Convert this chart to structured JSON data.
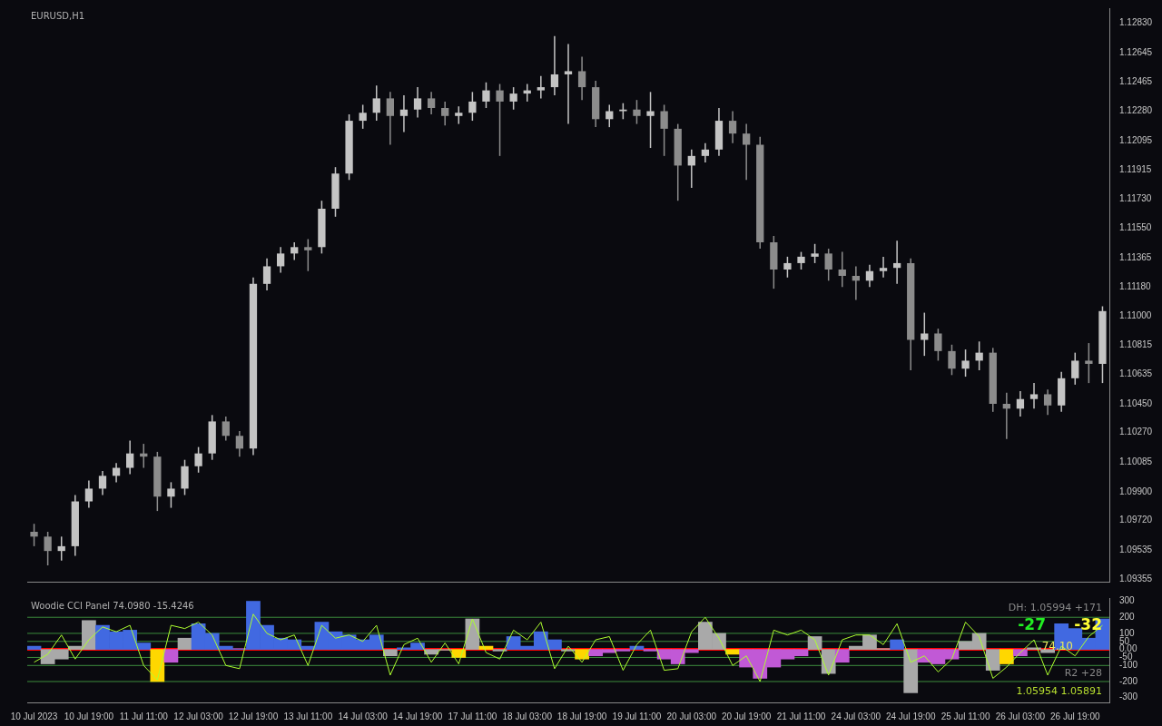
{
  "chart_data": [
    {
      "type": "candlestick",
      "title": "EURUSD,H1",
      "colors": [
        "#8c8c8c",
        "#8c8c8c",
        "#c4c4c4",
        "#c4c4c4",
        "#c4c4c4",
        "#c4c4c4",
        "#c4c4c4",
        "#c4c4c4",
        "#8c8c8c",
        "#8c8c8c",
        "#c4c4c4",
        "#c4c4c4",
        "#c4c4c4",
        "#c4c4c4",
        "#8c8c8c",
        "#8c8c8c",
        "#c4c4c4",
        "#c4c4c4",
        "#c4c4c4",
        "#c4c4c4",
        "#8c8c8c",
        "#c4c4c4",
        "#c4c4c4",
        "#c4c4c4",
        "#c4c4c4",
        "#c4c4c4",
        "#8c8c8c",
        "#c4c4c4",
        "#c4c4c4",
        "#8c8c8c",
        "#8c8c8c",
        "#c4c4c4",
        "#c4c4c4",
        "#c4c4c4",
        "#8c8c8c",
        "#c4c4c4",
        "#c4c4c4",
        "#c4c4c4",
        "#c4c4c4",
        "#c4c4c4",
        "#8c8c8c",
        "#8c8c8c",
        "#c4c4c4",
        "#c4c4c4",
        "#8c8c8c",
        "#c4c4c4",
        "#8c8c8c",
        "#8c8c8c",
        "#c4c4c4",
        "#c4c4c4",
        "#c4c4c4",
        "#8c8c8c",
        "#8c8c8c",
        "#8c8c8c",
        "#8c8c8c",
        "#c4c4c4",
        "#c4c4c4",
        "#c4c4c4",
        "#8c8c8c",
        "#8c8c8c",
        "#8c8c8c",
        "#c4c4c4",
        "#c4c4c4",
        "#c4c4c4",
        "#8c8c8c",
        "#c4c4c4",
        "#8c8c8c",
        "#8c8c8c",
        "#c4c4c4",
        "#c4c4c4",
        "#8c8c8c",
        "#8c8c8c",
        "#c4c4c4",
        "#c4c4c4",
        "#8c8c8c",
        "#c4c4c4",
        "#c4c4c4",
        "#8c8c8c",
        "#c4c4c4"
      ],
      "tick_labels": "y",
      "legend": false,
      "grid": false,
      "categories": [
        null,
        null,
        null,
        null,
        null,
        null,
        null,
        null,
        null,
        null,
        null,
        null,
        null,
        null,
        null,
        null,
        null,
        null,
        null,
        null,
        null,
        null,
        null,
        null,
        null,
        null,
        null,
        null,
        null,
        null,
        null,
        null,
        null,
        null,
        null,
        null,
        null,
        null,
        null,
        null,
        null,
        null,
        null,
        null,
        null,
        null,
        null,
        null,
        null,
        null,
        null,
        null,
        null,
        null,
        null,
        null,
        null,
        null,
        null,
        null,
        null,
        null,
        null,
        null,
        null,
        null,
        null,
        null,
        null,
        null,
        null,
        null,
        null,
        null,
        null,
        null,
        null,
        null,
        null
      ],
      "ylim": [
        1.09338,
        1.12924
      ],
      "yticks": [
        {
          "value": 1.1283,
          "label": "1.12830"
        },
        {
          "value": 1.12645,
          "label": "1.12645"
        },
        {
          "value": 1.12465,
          "label": "1.12465"
        },
        {
          "value": 1.1228,
          "label": "1.12280"
        },
        {
          "value": 1.12095,
          "label": "1.12095"
        },
        {
          "value": 1.11915,
          "label": "1.11915"
        },
        {
          "value": 1.1173,
          "label": "1.11730"
        },
        {
          "value": 1.1155,
          "label": "1.11550"
        },
        {
          "value": 1.11365,
          "label": "1.11365"
        },
        {
          "value": 1.1118,
          "label": "1.11180"
        },
        {
          "value": 1.11,
          "label": "1.11000"
        },
        {
          "value": 1.10815,
          "label": "1.10815"
        },
        {
          "value": 1.10635,
          "label": "1.10635"
        },
        {
          "value": 1.1045,
          "label": "1.10450"
        },
        {
          "value": 1.1027,
          "label": "1.10270"
        },
        {
          "value": 1.10085,
          "label": "1.10085"
        },
        {
          "value": 1.099,
          "label": "1.09900"
        },
        {
          "value": 1.0972,
          "label": "1.09720"
        },
        {
          "value": 1.09535,
          "label": "1.09535"
        },
        {
          "value": 1.09355,
          "label": "1.09355"
        }
      ],
      "ohlc": [
        [
          1.0965,
          1.097,
          1.0956,
          1.0962
        ],
        [
          1.0962,
          1.0965,
          1.0944,
          1.0953
        ],
        [
          1.0953,
          1.0962,
          1.0947,
          1.0956
        ],
        [
          1.0956,
          1.0988,
          1.095,
          1.0984
        ],
        [
          1.0984,
          1.0997,
          1.098,
          1.0992
        ],
        [
          1.0992,
          1.1003,
          1.0988,
          1.1
        ],
        [
          1.1,
          1.1008,
          1.0996,
          1.1005
        ],
        [
          1.1005,
          1.1022,
          1.1001,
          1.1014
        ],
        [
          1.1014,
          1.102,
          1.1005,
          1.1012
        ],
        [
          1.1012,
          1.1015,
          1.0978,
          1.0987
        ],
        [
          1.0987,
          1.0996,
          1.098,
          1.0992
        ],
        [
          1.0992,
          1.101,
          1.0988,
          1.1006
        ],
        [
          1.1006,
          1.1018,
          1.1002,
          1.1014
        ],
        [
          1.1014,
          1.1038,
          1.101,
          1.1034
        ],
        [
          1.1034,
          1.1037,
          1.1022,
          1.1025
        ],
        [
          1.1025,
          1.1028,
          1.1012,
          1.1017
        ],
        [
          1.1017,
          1.1124,
          1.1013,
          1.112
        ],
        [
          1.112,
          1.1136,
          1.1116,
          1.1131
        ],
        [
          1.1131,
          1.1143,
          1.1127,
          1.1139
        ],
        [
          1.1139,
          1.1146,
          1.1135,
          1.1143
        ],
        [
          1.1143,
          1.1148,
          1.1128,
          1.1141
        ],
        [
          1.1143,
          1.1172,
          1.1139,
          1.1167
        ],
        [
          1.1167,
          1.1193,
          1.1162,
          1.1189
        ],
        [
          1.1189,
          1.1226,
          1.1185,
          1.1222
        ],
        [
          1.1222,
          1.1232,
          1.1217,
          1.1227
        ],
        [
          1.1227,
          1.1244,
          1.1222,
          1.1236
        ],
        [
          1.1236,
          1.124,
          1.1207,
          1.1225
        ],
        [
          1.1225,
          1.1238,
          1.1215,
          1.1229
        ],
        [
          1.1229,
          1.1243,
          1.1224,
          1.1236
        ],
        [
          1.1236,
          1.124,
          1.1226,
          1.123
        ],
        [
          1.123,
          1.1234,
          1.1219,
          1.1225
        ],
        [
          1.1225,
          1.1231,
          1.122,
          1.1227
        ],
        [
          1.1227,
          1.124,
          1.1222,
          1.1234
        ],
        [
          1.1234,
          1.1246,
          1.123,
          1.1241
        ],
        [
          1.1241,
          1.1245,
          1.12,
          1.1234
        ],
        [
          1.1234,
          1.1243,
          1.1229,
          1.1239
        ],
        [
          1.1239,
          1.1245,
          1.1234,
          1.1241
        ],
        [
          1.1241,
          1.125,
          1.1236,
          1.1243
        ],
        [
          1.1243,
          1.1275,
          1.1238,
          1.1251
        ],
        [
          1.1251,
          1.127,
          1.122,
          1.1253
        ],
        [
          1.1253,
          1.1262,
          1.1235,
          1.1243
        ],
        [
          1.1243,
          1.1247,
          1.1218,
          1.1223
        ],
        [
          1.1223,
          1.1232,
          1.1218,
          1.1228
        ],
        [
          1.1228,
          1.1233,
          1.1223,
          1.1229
        ],
        [
          1.1229,
          1.1235,
          1.122,
          1.1225
        ],
        [
          1.1225,
          1.124,
          1.1205,
          1.1228
        ],
        [
          1.1228,
          1.1232,
          1.12,
          1.1217
        ],
        [
          1.1217,
          1.122,
          1.1172,
          1.1194
        ],
        [
          1.1194,
          1.1204,
          1.118,
          1.12
        ],
        [
          1.12,
          1.1208,
          1.1196,
          1.1204
        ],
        [
          1.1204,
          1.123,
          1.12,
          1.1222
        ],
        [
          1.1222,
          1.1228,
          1.1208,
          1.1214
        ],
        [
          1.1214,
          1.122,
          1.1185,
          1.1207
        ],
        [
          1.1207,
          1.1212,
          1.1142,
          1.1146
        ],
        [
          1.1146,
          1.115,
          1.1117,
          1.1129
        ],
        [
          1.1129,
          1.1137,
          1.1124,
          1.1133
        ],
        [
          1.1133,
          1.114,
          1.1129,
          1.1137
        ],
        [
          1.1137,
          1.1145,
          1.1133,
          1.1139
        ],
        [
          1.1139,
          1.1142,
          1.1122,
          1.1129
        ],
        [
          1.1129,
          1.114,
          1.1118,
          1.1125
        ],
        [
          1.1125,
          1.1131,
          1.111,
          1.1122
        ],
        [
          1.1122,
          1.1132,
          1.1118,
          1.1128
        ],
        [
          1.1128,
          1.1137,
          1.1124,
          1.113
        ],
        [
          1.113,
          1.1147,
          1.112,
          1.1133
        ],
        [
          1.1133,
          1.1136,
          1.1066,
          1.1085
        ],
        [
          1.1085,
          1.1102,
          1.1075,
          1.1089
        ],
        [
          1.1089,
          1.1092,
          1.1072,
          1.1078
        ],
        [
          1.1078,
          1.1082,
          1.1063,
          1.1067
        ],
        [
          1.1067,
          1.1079,
          1.1062,
          1.1072
        ],
        [
          1.1072,
          1.1084,
          1.1066,
          1.1077
        ],
        [
          1.1077,
          1.108,
          1.104,
          1.1045
        ],
        [
          1.1045,
          1.1052,
          1.1023,
          1.1042
        ],
        [
          1.1042,
          1.1053,
          1.1037,
          1.1048
        ],
        [
          1.1048,
          1.1058,
          1.1042,
          1.1051
        ],
        [
          1.1051,
          1.1054,
          1.1038,
          1.1044
        ],
        [
          1.1044,
          1.1065,
          1.104,
          1.1061
        ],
        [
          1.1061,
          1.1077,
          1.1057,
          1.1072
        ],
        [
          1.1072,
          1.1083,
          1.1058,
          1.107
        ],
        [
          1.107,
          1.1106,
          1.1058,
          1.1103
        ]
      ]
    },
    {
      "type": "bar",
      "title": "Woodie CCI Panel 74.0980 -15.4246",
      "legend": false,
      "grid": false,
      "marker": "none",
      "categories": [
        "10 Jul 2023",
        null,
        null,
        null,
        "10 Jul 19:00",
        null,
        null,
        null,
        "11 Jul 11:00",
        null,
        null,
        null,
        "12 Jul 03:00",
        null,
        null,
        null,
        "12 Jul 19:00",
        null,
        null,
        null,
        "13 Jul 11:00",
        null,
        null,
        null,
        "14 Jul 03:00",
        null,
        null,
        null,
        "14 Jul 19:00",
        null,
        null,
        null,
        "17 Jul 11:00",
        null,
        null,
        null,
        "18 Jul 03:00",
        null,
        null,
        null,
        "18 Jul 19:00",
        null,
        null,
        null,
        "19 Jul 11:00",
        null,
        null,
        null,
        "20 Jul 03:00",
        null,
        null,
        null,
        "20 Jul 19:00",
        null,
        null,
        null,
        "21 Jul 11:00",
        null,
        null,
        null,
        "24 Jul 03:00",
        null,
        null,
        null,
        "24 Jul 19:00",
        null,
        null,
        null,
        "25 Jul 11:00",
        null,
        null,
        null,
        "26 Jul 03:00",
        null,
        null,
        null,
        "26 Jul 19:00",
        null,
        null
      ],
      "ylim": [
        -330,
        320
      ],
      "yticks": [
        300,
        200,
        100,
        50,
        {
          "value": 0,
          "label": "0.00"
        },
        -50,
        -100,
        -200,
        -300
      ],
      "series": [
        {
          "type": "bar",
          "values": [
            20,
            -90,
            -60,
            20,
            180,
            150,
            110,
            120,
            40,
            -200,
            -80,
            70,
            160,
            100,
            20,
            5,
            300,
            150,
            70,
            60,
            20,
            170,
            110,
            90,
            60,
            90,
            -40,
            10,
            40,
            -30,
            -5,
            -50,
            190,
            20,
            -10,
            80,
            20,
            110,
            60,
            -10,
            -60,
            -40,
            -20,
            -10,
            20,
            -10,
            -60,
            -90,
            -20,
            170,
            100,
            -30,
            -110,
            -180,
            -110,
            -60,
            -40,
            80,
            -150,
            -80,
            20,
            90,
            5,
            60,
            -270,
            -80,
            -90,
            -60,
            50,
            100,
            -130,
            -90,
            -40,
            10,
            -20,
            160,
            130,
            70,
            190
          ],
          "colors": [
            "#4169e1",
            "#a9a9a9",
            "#a9a9a9",
            "#a9a9a9",
            "#a9a9a9",
            "#4169e1",
            "#4169e1",
            "#4169e1",
            "#4169e1",
            "#ffd700",
            "#c159d6",
            "#a9a9a9",
            "#4169e1",
            "#4169e1",
            "#4169e1",
            "#4169e1",
            "#4169e1",
            "#4169e1",
            "#4169e1",
            "#4169e1",
            "#4169e1",
            "#4169e1",
            "#4169e1",
            "#4169e1",
            "#4169e1",
            "#4169e1",
            "#a9a9a9",
            "#4169e1",
            "#4169e1",
            "#a9a9a9",
            "#a9a9a9",
            "#ffd700",
            "#a9a9a9",
            "#ffd700",
            "#a9a9a9",
            "#4169e1",
            "#4169e1",
            "#4169e1",
            "#4169e1",
            "#a9a9a9",
            "#ffd700",
            "#c159d6",
            "#c159d6",
            "#c159d6",
            "#4169e1",
            "#c159d6",
            "#c159d6",
            "#c159d6",
            "#c159d6",
            "#a9a9a9",
            "#a9a9a9",
            "#ffd700",
            "#c159d6",
            "#c159d6",
            "#c159d6",
            "#c159d6",
            "#c159d6",
            "#a9a9a9",
            "#a9a9a9",
            "#c159d6",
            "#a9a9a9",
            "#a9a9a9",
            "#a9a9a9",
            "#4169e1",
            "#a9a9a9",
            "#c159d6",
            "#c159d6",
            "#c159d6",
            "#a9a9a9",
            "#a9a9a9",
            "#a9a9a9",
            "#ffd700",
            "#c159d6",
            "#a9a9a9",
            "#a9a9a9",
            "#4169e1",
            "#4169e1",
            "#4169e1",
            "#4169e1"
          ]
        },
        {
          "type": "line",
          "color": "#adff2f",
          "values": [
            -80,
            -30,
            90,
            -60,
            60,
            140,
            110,
            150,
            -100,
            -190,
            150,
            130,
            170,
            90,
            -100,
            -120,
            220,
            100,
            60,
            90,
            -100,
            150,
            70,
            90,
            50,
            150,
            -160,
            30,
            70,
            -80,
            40,
            -90,
            190,
            -20,
            -60,
            120,
            60,
            170,
            -120,
            20,
            -80,
            60,
            80,
            -130,
            30,
            120,
            -130,
            -120,
            110,
            200,
            70,
            -100,
            -40,
            -200,
            120,
            90,
            120,
            60,
            -160,
            60,
            90,
            90,
            30,
            160,
            -80,
            -40,
            -140,
            -60,
            170,
            80,
            -180,
            -110,
            -20,
            60,
            -160,
            20,
            -40,
            80,
            150
          ]
        }
      ],
      "ref_lines": [
        {
          "axis": "y",
          "value": 200,
          "color": "#3c8c3c"
        },
        {
          "axis": "y",
          "value": 100,
          "color": "#3c8c3c"
        },
        {
          "axis": "y",
          "value": 50,
          "color": "#3c8c3c"
        },
        {
          "axis": "y",
          "value": 0,
          "color": "#ff0000"
        },
        {
          "axis": "y",
          "value": -50,
          "color": "#3c8c3c"
        },
        {
          "axis": "y",
          "value": -100,
          "color": "#3c8c3c"
        },
        {
          "axis": "y",
          "value": -200,
          "color": "#3c8c3c"
        }
      ],
      "annotations": [
        "DH: 1.05994 +171",
        "-27",
        "-32",
        "74.10",
        "R2 +28",
        "1.05954 1.05891"
      ]
    }
  ]
}
